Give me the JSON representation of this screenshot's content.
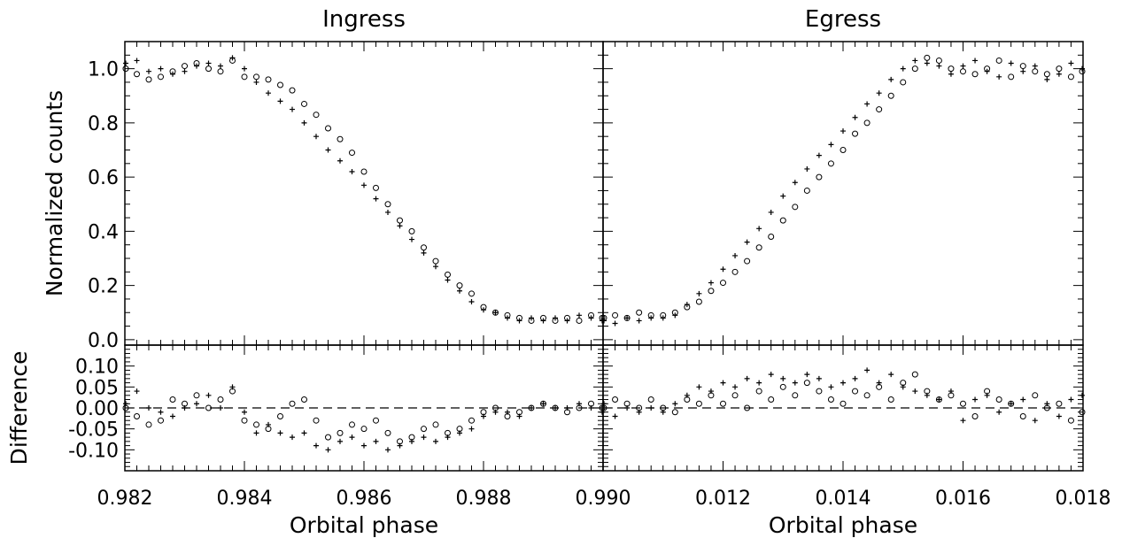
{
  "chart_data": [
    {
      "type": "scatter",
      "title": "Ingress",
      "panel": "top-left",
      "xlabel": "",
      "ylabel": "Normalized counts",
      "xlim": [
        0.982,
        0.99
      ],
      "ylim": [
        -0.02,
        1.1
      ],
      "yticks": [
        "0.0",
        "0.2",
        "0.4",
        "0.6",
        "0.8",
        "1.0"
      ],
      "series": [
        {
          "marker": "circle",
          "x": [
            0.982,
            0.9822,
            0.9824,
            0.9826,
            0.9828,
            0.983,
            0.9832,
            0.9834,
            0.9836,
            0.9838,
            0.984,
            0.9842,
            0.9844,
            0.9846,
            0.9848,
            0.985,
            0.9852,
            0.9854,
            0.9856,
            0.9858,
            0.986,
            0.9862,
            0.9864,
            0.9866,
            0.9868,
            0.987,
            0.9872,
            0.9874,
            0.9876,
            0.9878,
            0.988,
            0.9882,
            0.9884,
            0.9886,
            0.9888,
            0.989,
            0.9892,
            0.9894,
            0.9896,
            0.9898,
            0.99
          ],
          "y": [
            1.0,
            0.98,
            0.96,
            0.97,
            0.99,
            1.01,
            1.02,
            1.0,
            0.99,
            1.03,
            0.97,
            0.97,
            0.96,
            0.94,
            0.92,
            0.87,
            0.83,
            0.78,
            0.74,
            0.69,
            0.62,
            0.56,
            0.5,
            0.44,
            0.4,
            0.34,
            0.29,
            0.24,
            0.2,
            0.17,
            0.12,
            0.1,
            0.09,
            0.08,
            0.07,
            0.08,
            0.07,
            0.08,
            0.07,
            0.09,
            0.08
          ]
        },
        {
          "marker": "plus",
          "x": [
            0.982,
            0.9822,
            0.9824,
            0.9826,
            0.9828,
            0.983,
            0.9832,
            0.9834,
            0.9836,
            0.9838,
            0.984,
            0.9842,
            0.9844,
            0.9846,
            0.9848,
            0.985,
            0.9852,
            0.9854,
            0.9856,
            0.9858,
            0.986,
            0.9862,
            0.9864,
            0.9866,
            0.9868,
            0.987,
            0.9872,
            0.9874,
            0.9876,
            0.9878,
            0.988,
            0.9882,
            0.9884,
            0.9886,
            0.9888,
            0.989,
            0.9892,
            0.9894,
            0.9896,
            0.9898,
            0.99
          ],
          "y": [
            1.02,
            1.03,
            0.99,
            1.0,
            0.98,
            0.99,
            1.01,
            1.02,
            1.01,
            1.04,
            1.0,
            0.95,
            0.91,
            0.88,
            0.85,
            0.8,
            0.75,
            0.7,
            0.66,
            0.62,
            0.57,
            0.52,
            0.47,
            0.42,
            0.37,
            0.32,
            0.27,
            0.22,
            0.18,
            0.14,
            0.11,
            0.1,
            0.08,
            0.07,
            0.08,
            0.07,
            0.08,
            0.07,
            0.09,
            0.08,
            0.07
          ]
        }
      ]
    },
    {
      "type": "scatter",
      "title": "Egress",
      "panel": "top-right",
      "xlabel": "",
      "ylabel": "",
      "xlim": [
        0.01,
        0.018
      ],
      "ylim": [
        -0.02,
        1.1
      ],
      "series": [
        {
          "marker": "circle",
          "x": [
            0.01,
            0.0102,
            0.0104,
            0.0106,
            0.0108,
            0.011,
            0.0112,
            0.0114,
            0.0116,
            0.0118,
            0.012,
            0.0122,
            0.0124,
            0.0126,
            0.0128,
            0.013,
            0.0132,
            0.0134,
            0.0136,
            0.0138,
            0.014,
            0.0142,
            0.0144,
            0.0146,
            0.0148,
            0.015,
            0.0152,
            0.0154,
            0.0156,
            0.0158,
            0.016,
            0.0162,
            0.0164,
            0.0166,
            0.0168,
            0.017,
            0.0172,
            0.0174,
            0.0176,
            0.0178,
            0.018
          ],
          "y": [
            0.08,
            0.09,
            0.08,
            0.1,
            0.09,
            0.09,
            0.1,
            0.12,
            0.14,
            0.18,
            0.21,
            0.25,
            0.29,
            0.34,
            0.38,
            0.44,
            0.49,
            0.55,
            0.6,
            0.65,
            0.7,
            0.76,
            0.8,
            0.85,
            0.9,
            0.95,
            1.0,
            1.04,
            1.03,
            1.0,
            0.99,
            0.98,
            1.0,
            1.03,
            0.97,
            1.01,
            0.99,
            0.98,
            1.0,
            0.97,
            0.99
          ]
        },
        {
          "marker": "plus",
          "x": [
            0.01,
            0.0102,
            0.0104,
            0.0106,
            0.0108,
            0.011,
            0.0112,
            0.0114,
            0.0116,
            0.0118,
            0.012,
            0.0122,
            0.0124,
            0.0126,
            0.0128,
            0.013,
            0.0132,
            0.0134,
            0.0136,
            0.0138,
            0.014,
            0.0142,
            0.0144,
            0.0146,
            0.0148,
            0.015,
            0.0152,
            0.0154,
            0.0156,
            0.0158,
            0.016,
            0.0162,
            0.0164,
            0.0166,
            0.0168,
            0.017,
            0.0172,
            0.0174,
            0.0176,
            0.0178,
            0.018
          ],
          "y": [
            0.07,
            0.06,
            0.08,
            0.07,
            0.08,
            0.08,
            0.09,
            0.13,
            0.17,
            0.21,
            0.26,
            0.31,
            0.36,
            0.41,
            0.47,
            0.53,
            0.58,
            0.63,
            0.68,
            0.72,
            0.77,
            0.82,
            0.87,
            0.91,
            0.96,
            1.0,
            1.03,
            1.02,
            1.01,
            0.98,
            1.01,
            1.03,
            0.99,
            0.97,
            1.02,
            0.99,
            1.01,
            0.96,
            0.98,
            1.02,
            1.0
          ]
        }
      ]
    },
    {
      "type": "scatter",
      "panel": "bottom-left",
      "xlabel": "Orbital phase",
      "ylabel": "Difference",
      "xlim": [
        0.982,
        0.99
      ],
      "ylim": [
        -0.15,
        0.15
      ],
      "xticks": [
        "0.982",
        "0.984",
        "0.986",
        "0.988",
        "0.990"
      ],
      "yticks": [
        "-0.10",
        "-0.05",
        "0.00",
        "0.05",
        "0.10"
      ],
      "reference_line": {
        "y": 0.0,
        "style": "dashed"
      },
      "series": [
        {
          "marker": "circle",
          "x": [
            0.982,
            0.9822,
            0.9824,
            0.9826,
            0.9828,
            0.983,
            0.9832,
            0.9834,
            0.9836,
            0.9838,
            0.984,
            0.9842,
            0.9844,
            0.9846,
            0.9848,
            0.985,
            0.9852,
            0.9854,
            0.9856,
            0.9858,
            0.986,
            0.9862,
            0.9864,
            0.9866,
            0.9868,
            0.987,
            0.9872,
            0.9874,
            0.9876,
            0.9878,
            0.988,
            0.9882,
            0.9884,
            0.9886,
            0.9888,
            0.989,
            0.9892,
            0.9894,
            0.9896,
            0.9898,
            0.99
          ],
          "y": [
            0.0,
            -0.02,
            -0.04,
            -0.03,
            0.02,
            0.01,
            0.03,
            0.0,
            0.02,
            0.04,
            -0.03,
            -0.04,
            -0.05,
            -0.02,
            0.01,
            0.02,
            -0.03,
            -0.07,
            -0.06,
            -0.04,
            -0.05,
            -0.03,
            -0.06,
            -0.08,
            -0.07,
            -0.05,
            -0.04,
            -0.06,
            -0.05,
            -0.03,
            -0.01,
            0.0,
            -0.02,
            -0.01,
            0.0,
            0.01,
            0.0,
            -0.01,
            0.0,
            0.01,
            0.0
          ]
        },
        {
          "marker": "plus",
          "x": [
            0.982,
            0.9822,
            0.9824,
            0.9826,
            0.9828,
            0.983,
            0.9832,
            0.9834,
            0.9836,
            0.9838,
            0.984,
            0.9842,
            0.9844,
            0.9846,
            0.9848,
            0.985,
            0.9852,
            0.9854,
            0.9856,
            0.9858,
            0.986,
            0.9862,
            0.9864,
            0.9866,
            0.9868,
            0.987,
            0.9872,
            0.9874,
            0.9876,
            0.9878,
            0.988,
            0.9882,
            0.9884,
            0.9886,
            0.9888,
            0.989,
            0.9892,
            0.9894,
            0.9896,
            0.9898,
            0.99
          ],
          "y": [
            0.01,
            0.04,
            0.0,
            -0.01,
            -0.02,
            0.0,
            0.01,
            0.03,
            0.0,
            0.05,
            -0.01,
            -0.06,
            -0.04,
            -0.06,
            -0.07,
            -0.06,
            -0.09,
            -0.1,
            -0.08,
            -0.07,
            -0.09,
            -0.08,
            -0.1,
            -0.09,
            -0.08,
            -0.07,
            -0.08,
            -0.07,
            -0.06,
            -0.05,
            -0.02,
            -0.01,
            -0.01,
            -0.02,
            0.0,
            0.01,
            0.0,
            0.0,
            0.01,
            0.0,
            -0.01
          ]
        }
      ]
    },
    {
      "type": "scatter",
      "panel": "bottom-right",
      "xlabel": "Orbital phase",
      "ylabel": "",
      "xlim": [
        0.01,
        0.018
      ],
      "ylim": [
        -0.15,
        0.15
      ],
      "xticks": [
        "0.012",
        "0.014",
        "0.016",
        "0.018"
      ],
      "reference_line": {
        "y": 0.0,
        "style": "dashed"
      },
      "series": [
        {
          "marker": "circle",
          "x": [
            0.01,
            0.0102,
            0.0104,
            0.0106,
            0.0108,
            0.011,
            0.0112,
            0.0114,
            0.0116,
            0.0118,
            0.012,
            0.0122,
            0.0124,
            0.0126,
            0.0128,
            0.013,
            0.0132,
            0.0134,
            0.0136,
            0.0138,
            0.014,
            0.0142,
            0.0144,
            0.0146,
            0.0148,
            0.015,
            0.0152,
            0.0154,
            0.0156,
            0.0158,
            0.016,
            0.0162,
            0.0164,
            0.0166,
            0.0168,
            0.017,
            0.0172,
            0.0174,
            0.0176,
            0.0178,
            0.018
          ],
          "y": [
            0.0,
            0.02,
            0.01,
            0.0,
            0.02,
            0.0,
            -0.01,
            0.02,
            0.01,
            0.03,
            0.01,
            0.03,
            0.0,
            0.04,
            0.02,
            0.05,
            0.03,
            0.06,
            0.04,
            0.02,
            0.01,
            0.04,
            0.03,
            0.05,
            0.02,
            0.06,
            0.08,
            0.04,
            0.02,
            0.03,
            0.01,
            -0.02,
            0.04,
            0.02,
            0.01,
            -0.02,
            0.03,
            0.0,
            0.01,
            -0.03,
            -0.01
          ]
        },
        {
          "marker": "plus",
          "x": [
            0.01,
            0.0102,
            0.0104,
            0.0106,
            0.0108,
            0.011,
            0.0112,
            0.0114,
            0.0116,
            0.0118,
            0.012,
            0.0122,
            0.0124,
            0.0126,
            0.0128,
            0.013,
            0.0132,
            0.0134,
            0.0136,
            0.0138,
            0.014,
            0.0142,
            0.0144,
            0.0146,
            0.0148,
            0.015,
            0.0152,
            0.0154,
            0.0156,
            0.0158,
            0.016,
            0.0162,
            0.0164,
            0.0166,
            0.0168,
            0.017,
            0.0172,
            0.0174,
            0.0176,
            0.0178,
            0.018
          ],
          "y": [
            0.01,
            -0.02,
            0.0,
            -0.01,
            0.0,
            -0.01,
            0.01,
            0.03,
            0.05,
            0.04,
            0.06,
            0.05,
            0.07,
            0.06,
            0.08,
            0.07,
            0.06,
            0.08,
            0.07,
            0.05,
            0.06,
            0.07,
            0.09,
            0.06,
            0.08,
            0.05,
            0.04,
            0.03,
            0.02,
            0.04,
            -0.03,
            0.02,
            0.03,
            -0.01,
            0.01,
            0.02,
            -0.03,
            0.01,
            -0.02,
            0.02,
            0.03
          ]
        }
      ]
    }
  ]
}
